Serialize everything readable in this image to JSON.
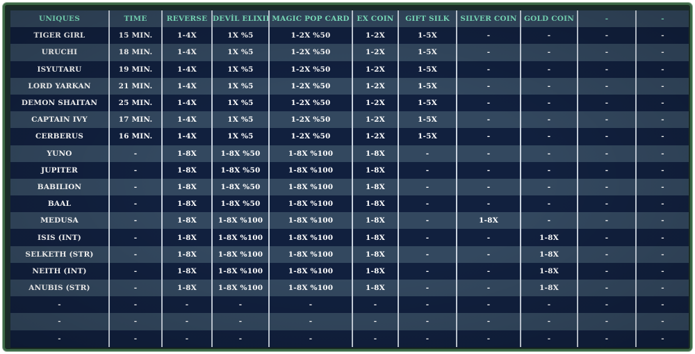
{
  "table": {
    "headers": [
      "UNIQUES",
      "TIME",
      "REVERSE",
      "DEVİL ELIXIR",
      "MAGIC POP CARD",
      "EX COIN",
      "GIFT SILK",
      "SILVER COIN",
      "GOLD COIN",
      "-",
      "-"
    ],
    "rows": [
      [
        "TIGER GIRL",
        "15 MIN.",
        "1-4X",
        "1X %5",
        "1-2X %50",
        "1-2X",
        "1-5X",
        "-",
        "-",
        "-",
        "-"
      ],
      [
        "URUCHI",
        "18 MIN.",
        "1-4X",
        "1X %5",
        "1-2X %50",
        "1-2X",
        "1-5X",
        "-",
        "-",
        "-",
        "-"
      ],
      [
        "ISYUTARU",
        "19 MIN.",
        "1-4X",
        "1X %5",
        "1-2X %50",
        "1-2X",
        "1-5X",
        "-",
        "-",
        "-",
        "-"
      ],
      [
        "LORD YARKAN",
        "21 MIN.",
        "1-4X",
        "1X %5",
        "1-2X %50",
        "1-2X",
        "1-5X",
        "-",
        "-",
        "-",
        "-"
      ],
      [
        "DEMON SHAITAN",
        "25 MIN.",
        "1-4X",
        "1X %5",
        "1-2X %50",
        "1-2X",
        "1-5X",
        "-",
        "-",
        "-",
        "-"
      ],
      [
        "CAPTAIN IVY",
        "17 MIN.",
        "1-4X",
        "1X %5",
        "1-2X %50",
        "1-2X",
        "1-5X",
        "-",
        "-",
        "-",
        "-"
      ],
      [
        "CERBERUS",
        "16 MIN.",
        "1-4X",
        "1X %5",
        "1-2X %50",
        "1-2X",
        "1-5X",
        "-",
        "-",
        "-",
        "-"
      ],
      [
        "YUNO",
        "-",
        "1-8X",
        "1-8X %50",
        "1-8X %100",
        "1-8X",
        "-",
        "-",
        "-",
        "-",
        "-"
      ],
      [
        "JUPITER",
        "-",
        "1-8X",
        "1-8X %50",
        "1-8X %100",
        "1-8X",
        "-",
        "-",
        "-",
        "-",
        "-"
      ],
      [
        "BABILION",
        "-",
        "1-8X",
        "1-8X %50",
        "1-8X %100",
        "1-8X",
        "-",
        "-",
        "-",
        "-",
        "-"
      ],
      [
        "BAAL",
        "-",
        "1-8X",
        "1-8X %50",
        "1-8X %100",
        "1-8X",
        "-",
        "-",
        "-",
        "-",
        "-"
      ],
      [
        "MEDUSA",
        "-",
        "1-8X",
        "1-8X %100",
        "1-8X %100",
        "1-8X",
        "-",
        "1-8X",
        "-",
        "-",
        "-"
      ],
      [
        "ISIS (INT)",
        "-",
        "1-8X",
        "1-8X %100",
        "1-8X %100",
        "1-8X",
        "-",
        "-",
        "1-8X",
        "-",
        "-"
      ],
      [
        "SELKETH (STR)",
        "-",
        "1-8X",
        "1-8X %100",
        "1-8X %100",
        "1-8X",
        "-",
        "-",
        "1-8X",
        "-",
        "-"
      ],
      [
        "NEITH (INT)",
        "-",
        "1-8X",
        "1-8X %100",
        "1-8X %100",
        "1-8X",
        "-",
        "-",
        "1-8X",
        "-",
        "-"
      ],
      [
        "ANUBIS (STR)",
        "-",
        "1-8X",
        "1-8X %100",
        "1-8X %100",
        "1-8X",
        "-",
        "-",
        "1-8X",
        "-",
        "-"
      ],
      [
        "-",
        "-",
        "-",
        "-",
        "-",
        "-",
        "-",
        "-",
        "-",
        "-",
        "-"
      ],
      [
        "-",
        "-",
        "-",
        "-",
        "-",
        "-",
        "-",
        "-",
        "-",
        "-",
        "-"
      ],
      [
        "-",
        "-",
        "-",
        "-",
        "-",
        "-",
        "-",
        "-",
        "-",
        "-",
        "-"
      ]
    ]
  },
  "colors": {
    "header_text": "#7fe6c4",
    "cell_text": "#ffffff",
    "row_dark": "#11203e",
    "row_light": "#33485f",
    "frame_border": "#3e6a48",
    "column_divider": "#c9d2de"
  }
}
